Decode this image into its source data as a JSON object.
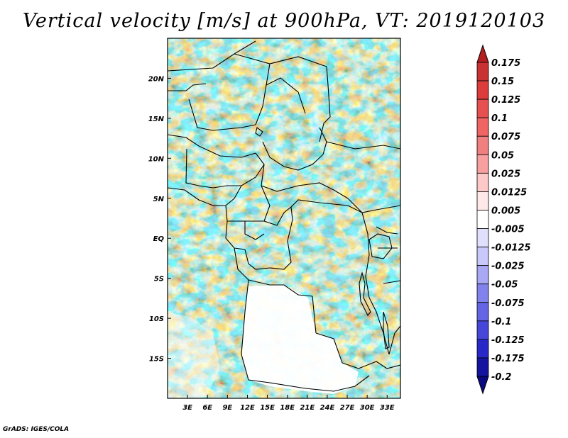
{
  "title": "Vertical velocity [m/s] at 900hPa, VT: 2019120103",
  "credit": "GrADS: IGES/COLA",
  "map": {
    "lon_range": [
      0,
      35
    ],
    "lat_range": [
      -20,
      25
    ],
    "x_ticks": [
      "3E",
      "6E",
      "9E",
      "12E",
      "15E",
      "18E",
      "21E",
      "24E",
      "27E",
      "30E",
      "33E"
    ],
    "x_tick_values": [
      3,
      6,
      9,
      12,
      15,
      18,
      21,
      24,
      27,
      30,
      33
    ],
    "y_ticks": [
      "20N",
      "15N",
      "10N",
      "5N",
      "EQ",
      "5S",
      "10S",
      "15S"
    ],
    "y_tick_values": [
      20,
      15,
      10,
      5,
      0,
      -5,
      -10,
      -15
    ]
  },
  "colorbar": {
    "labels": [
      "0.175",
      "0.15",
      "0.125",
      "0.1",
      "0.075",
      "0.05",
      "0.025",
      "0.0125",
      "0.005",
      "-0.005",
      "-0.0125",
      "-0.025",
      "-0.05",
      "-0.075",
      "-0.1",
      "-0.125",
      "-0.175",
      "-0.2"
    ],
    "colors": [
      "#b41e1e",
      "#c83232",
      "#dc3c3c",
      "#e65050",
      "#f06464",
      "#f08080",
      "#f8a0a0",
      "#fcc8c8",
      "#fee8e8",
      "#ffffff",
      "#e0e0fc",
      "#c8c8fa",
      "#a8a8f4",
      "#8282ec",
      "#6464e4",
      "#4646d8",
      "#2828c8",
      "#1414a0",
      "#0a0a80"
    ]
  }
}
